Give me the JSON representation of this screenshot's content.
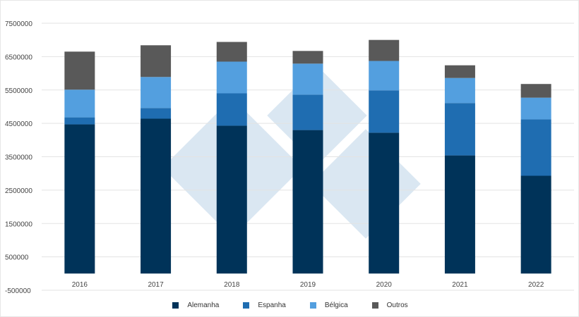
{
  "chart_data": {
    "type": "bar",
    "stacked": true,
    "categories": [
      "2016",
      "2017",
      "2018",
      "2019",
      "2020",
      "2021",
      "2022"
    ],
    "series": [
      {
        "name": "Alemanha",
        "color": "#003359",
        "values": [
          4470000,
          4640000,
          4430000,
          4300000,
          4220000,
          3540000,
          2930000
        ]
      },
      {
        "name": "Espanha",
        "color": "#1f6db1",
        "values": [
          210000,
          320000,
          970000,
          1060000,
          1270000,
          1570000,
          1690000
        ]
      },
      {
        "name": "Bélgica",
        "color": "#539fdf",
        "values": [
          830000,
          930000,
          950000,
          930000,
          880000,
          750000,
          650000
        ]
      },
      {
        "name": "Outros",
        "color": "#595959",
        "values": [
          1140000,
          950000,
          590000,
          380000,
          630000,
          380000,
          410000
        ]
      }
    ],
    "yticks": [
      "7500000",
      "6500000",
      "5500000",
      "4500000",
      "3500000",
      "2500000",
      "1500000",
      "500000",
      "-500000"
    ],
    "ylim": [
      -500000,
      7500000
    ],
    "grid": true,
    "legend": "bottom",
    "xlabel": "",
    "ylabel": ""
  }
}
